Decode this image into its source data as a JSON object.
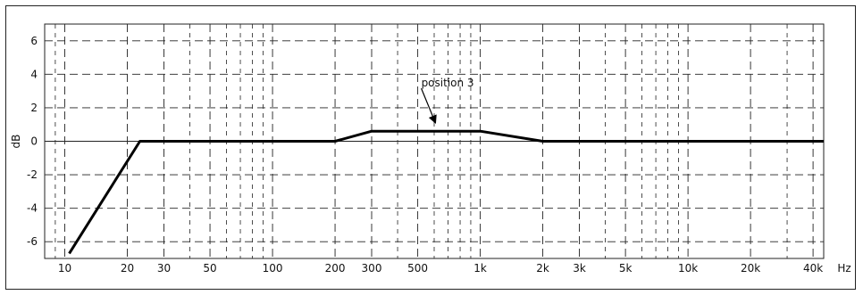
{
  "chart_data": {
    "type": "line",
    "title": "",
    "xlabel": "Hz",
    "ylabel": "dB",
    "x_scale": "log",
    "xlim": [
      8,
      45000
    ],
    "ylim": [
      -7,
      7
    ],
    "grid": true,
    "x_ticks": [
      10,
      20,
      30,
      50,
      100,
      200,
      300,
      500,
      1000,
      2000,
      3000,
      5000,
      10000,
      20000,
      40000
    ],
    "x_tick_labels": [
      "10",
      "20",
      "30",
      "50",
      "100",
      "200",
      "300",
      "500",
      "1k",
      "2k",
      "3k",
      "5k",
      "10k",
      "20k",
      "40k"
    ],
    "y_ticks": [
      -6,
      -4,
      -2,
      0,
      2,
      4,
      6
    ],
    "y_tick_labels": [
      "-6",
      "-4",
      "-2",
      "0",
      "2",
      "4",
      "6"
    ],
    "series": [
      {
        "x": [
          10.5,
          23,
          200,
          300,
          1000,
          2000,
          45000
        ],
        "y": [
          -6.7,
          0,
          0,
          0.6,
          0.6,
          0,
          0
        ]
      }
    ],
    "annotations": [
      {
        "text": "position 3",
        "x": 700,
        "y": 3.0,
        "arrow_to": [
          600,
          1.1
        ]
      }
    ]
  }
}
